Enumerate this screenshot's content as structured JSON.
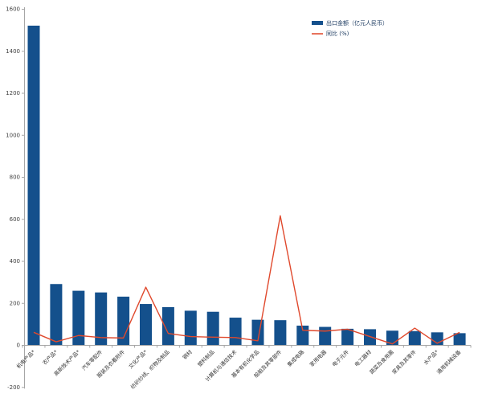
{
  "legend": {
    "bar_label": "出口金额（亿元人民币）",
    "line_label": "同比 (%)"
  },
  "colors": {
    "bar": "#14508C",
    "line": "#E0492D",
    "line_legend": "#E8735C",
    "axis": "#A6A6A6",
    "tick_text": "#404040",
    "category_text": "#333333",
    "legend_text": "#17365D"
  },
  "chart_data": {
    "type": "bar",
    "title": "",
    "xlabel": "",
    "ylabel": "",
    "categories": [
      "机电产品*",
      "农产品*",
      "高新技术产品*",
      "汽车零配件",
      "服装及衣着附件",
      "文化产品*",
      "纺织纱线、织物及制品",
      "钢材",
      "塑料制品",
      "计算机与通信技术",
      "基本有机化学品",
      "船舶及其零部件",
      "集成电路",
      "家用电器",
      "电子元件",
      "电工器材",
      "蔬菜及食用菌",
      "家具及其零件",
      "水产品*",
      "通用机械设备"
    ],
    "series": [
      {
        "name": "出口金额（亿元人民币）",
        "type": "bar",
        "color": "#14508C",
        "values": [
          1520,
          290,
          258,
          250,
          230,
          195,
          180,
          163,
          158,
          130,
          120,
          118,
          92,
          86,
          77,
          75,
          68,
          66,
          60,
          56
        ]
      },
      {
        "name": "同比 (%)",
        "type": "line",
        "color": "#E0492D",
        "values": [
          60,
          15,
          45,
          35,
          33,
          275,
          55,
          40,
          37,
          35,
          20,
          615,
          70,
          66,
          75,
          40,
          5,
          80,
          8,
          60
        ]
      }
    ],
    "ylim": [
      -200,
      1600
    ],
    "ytick_step": 200,
    "yticks": [
      -200,
      0,
      200,
      400,
      600,
      800,
      1000,
      1200,
      1400,
      1600
    ],
    "grid": false,
    "legend_position": "top-right",
    "x_labels_rotated_deg": 45
  }
}
